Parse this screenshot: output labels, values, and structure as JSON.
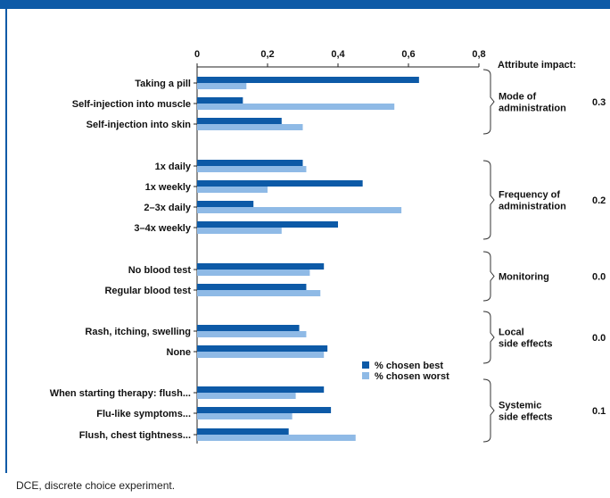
{
  "footnote": "DCE, discrete choice experiment.",
  "colors": {
    "header": "#0d5aa7",
    "best": "#0d5aa7",
    "worst": "#8fbae6",
    "axis": "#222222"
  },
  "chart_data": {
    "type": "bar",
    "orientation": "horizontal",
    "xlim": [
      0,
      0.8
    ],
    "x_ticks": [
      "0",
      "0,2",
      "0,4",
      "0,6",
      "0,8"
    ],
    "grid": false,
    "legend_position": "lower-right-inside",
    "categories": [
      "Taking a pill",
      "Self-injection into muscle",
      "Self-injection into skin",
      "1x daily",
      "1x weekly",
      "2–3x daily",
      "3–4x weekly",
      "No blood test",
      "Regular blood test",
      "Rash, itching, swelling",
      "None",
      "When starting therapy: flush...",
      "Flu-like symptoms...",
      "Flush, chest tightness..."
    ],
    "series": [
      {
        "name": "% chosen best",
        "values": [
          0.63,
          0.13,
          0.24,
          0.3,
          0.47,
          0.16,
          0.4,
          0.36,
          0.31,
          0.29,
          0.37,
          0.36,
          0.38,
          0.26
        ]
      },
      {
        "name": "% chosen worst",
        "values": [
          0.14,
          0.56,
          0.3,
          0.31,
          0.2,
          0.58,
          0.24,
          0.32,
          0.35,
          0.31,
          0.36,
          0.28,
          0.27,
          0.45
        ]
      }
    ],
    "attribute_impact_title": "Attribute impact:",
    "groups": [
      {
        "label_lines": [
          "Mode of",
          "administration"
        ],
        "impact": "0.3"
      },
      {
        "label_lines": [
          "Frequency of",
          "administration"
        ],
        "impact": "0.2"
      },
      {
        "label_lines": [
          "Monitoring"
        ],
        "impact": "0.0"
      },
      {
        "label_lines": [
          "Local",
          "side effects"
        ],
        "impact": "0.0"
      },
      {
        "label_lines": [
          "Systemic",
          "side effects"
        ],
        "impact": "0.1"
      }
    ]
  }
}
